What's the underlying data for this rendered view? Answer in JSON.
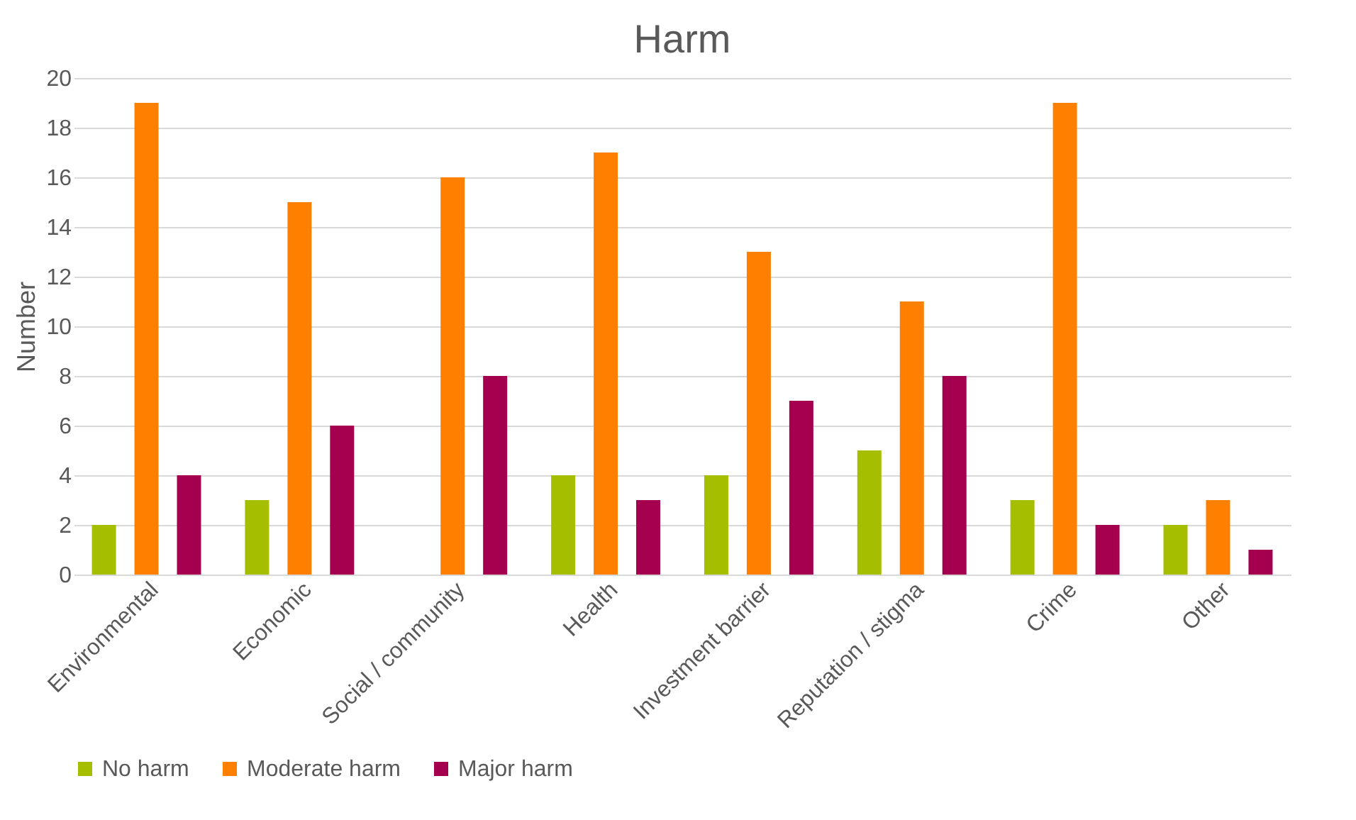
{
  "chart_data": {
    "type": "bar",
    "title": "Harm",
    "ylabel": "Number",
    "categories": [
      "Environmental",
      "Economic",
      "Social / community",
      "Health",
      "Investment barrier",
      "Reputation / stigma",
      "Crime",
      "Other"
    ],
    "series": [
      {
        "name": "No harm",
        "color": "#a5be00",
        "values": [
          2,
          3,
          0,
          4,
          4,
          5,
          3,
          2
        ]
      },
      {
        "name": "Moderate harm",
        "color": "#ff8000",
        "values": [
          19,
          15,
          16,
          17,
          13,
          11,
          19,
          3
        ]
      },
      {
        "name": "Major harm",
        "color": "#a50050",
        "values": [
          4,
          6,
          8,
          3,
          7,
          8,
          2,
          1
        ]
      }
    ],
    "ylim": [
      0,
      20
    ],
    "yticks": [
      0,
      2,
      4,
      6,
      8,
      10,
      12,
      14,
      16,
      18,
      20
    ],
    "grid": "y",
    "legend": "bottom"
  }
}
